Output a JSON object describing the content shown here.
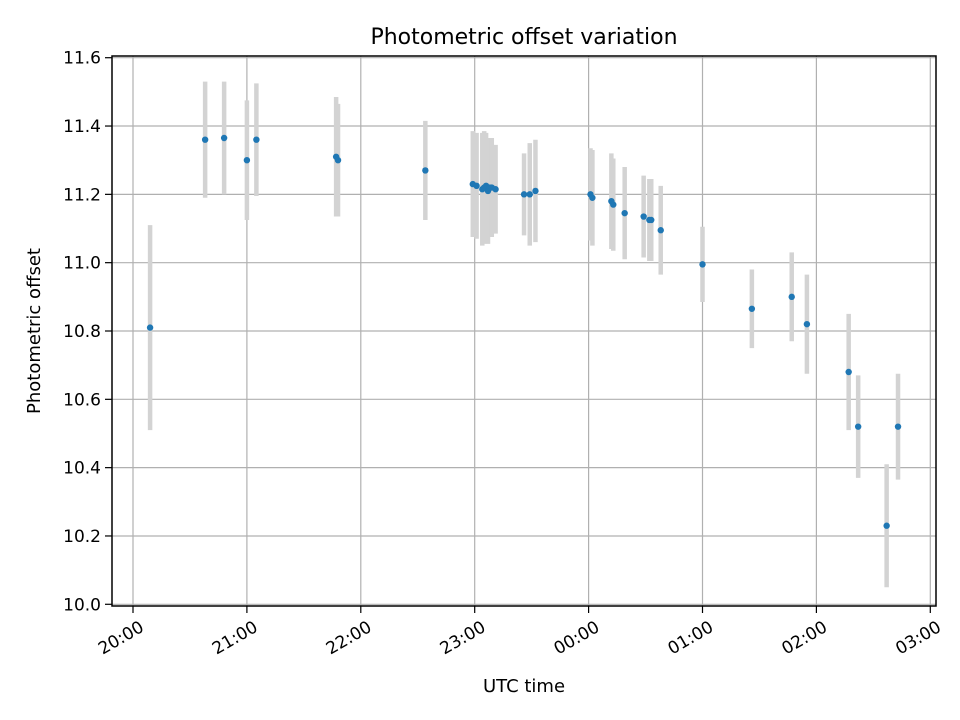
{
  "chart_data": {
    "type": "scatter",
    "title": "Photometric offset variation",
    "xlabel": "UTC time",
    "ylabel": "Photometric offset",
    "x_tick_labels": [
      "20:00",
      "21:00",
      "22:00",
      "23:00",
      "00:00",
      "01:00",
      "02:00",
      "03:00"
    ],
    "y_tick_labels": [
      "10.0",
      "10.2",
      "10.4",
      "10.6",
      "10.8",
      "11.0",
      "11.2",
      "11.4",
      "11.6"
    ],
    "ylim": [
      9.995,
      11.605
    ],
    "grid": true,
    "colors": {
      "points": "#1f77b4",
      "error_bars": "#d3d3d3",
      "grid": "#b0b0b0"
    },
    "series": [
      {
        "x": [
          "20:09",
          "20:38",
          "20:48",
          "21:00",
          "21:05",
          "21:47",
          "21:48",
          "22:34",
          "22:59",
          "23:01",
          "23:04",
          "23:05",
          "23:06",
          "23:07",
          "23:08",
          "23:09",
          "23:11",
          "23:26",
          "23:29",
          "23:32",
          "00:01",
          "00:02",
          "00:12",
          "00:13",
          "00:19",
          "00:29",
          "00:32",
          "00:33",
          "00:38",
          "01:00",
          "01:26",
          "01:47",
          "01:55",
          "02:17",
          "02:22",
          "02:37",
          "02:43"
        ],
        "y": [
          10.81,
          11.36,
          11.365,
          11.3,
          11.36,
          11.31,
          11.3,
          11.27,
          11.23,
          11.225,
          11.215,
          11.22,
          11.225,
          11.21,
          11.22,
          11.22,
          11.215,
          11.2,
          11.2,
          11.21,
          11.2,
          11.19,
          11.18,
          11.17,
          11.145,
          11.135,
          11.125,
          11.125,
          11.095,
          10.995,
          10.865,
          10.9,
          10.82,
          10.68,
          10.52,
          10.23,
          10.52
        ],
        "yerr": [
          0.3,
          0.17,
          0.165,
          0.175,
          0.165,
          0.175,
          0.165,
          0.145,
          0.155,
          0.155,
          0.165,
          0.165,
          0.155,
          0.155,
          0.145,
          0.145,
          0.13,
          0.12,
          0.15,
          0.15,
          0.135,
          0.14,
          0.14,
          0.135,
          0.135,
          0.12,
          0.12,
          0.12,
          0.13,
          0.11,
          0.115,
          0.13,
          0.145,
          0.17,
          0.15,
          0.18,
          0.155
        ]
      }
    ]
  }
}
